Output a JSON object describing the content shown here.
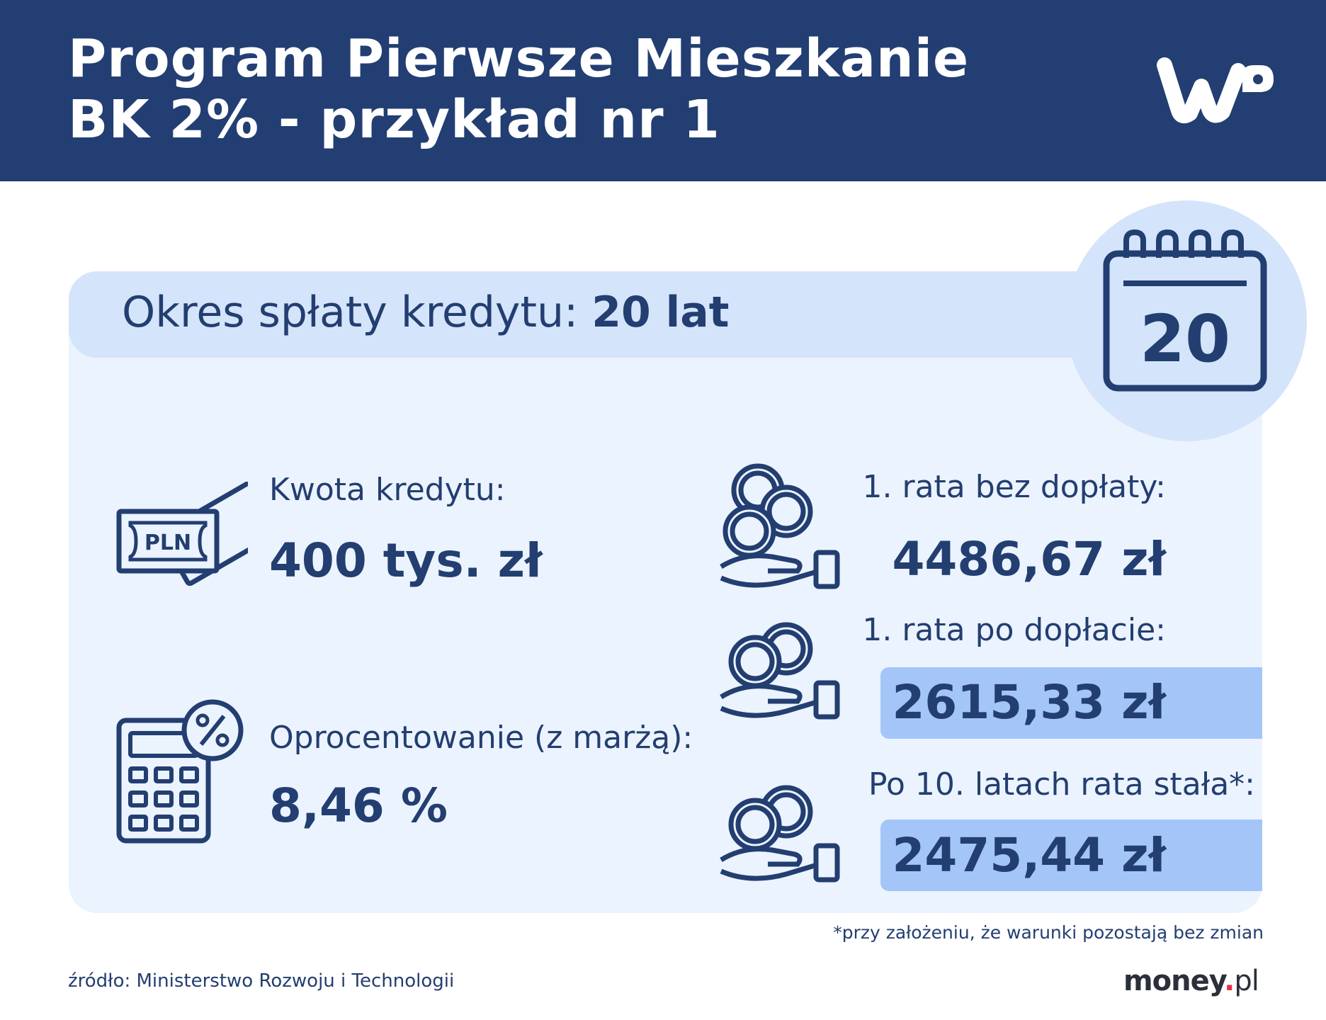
{
  "header": {
    "title_line1": "Program Pierwsze Mieszkanie",
    "title_line2": "BK 2% - przykład nr 1",
    "logo_text": "WP"
  },
  "period": {
    "label": "Okres spłaty kredytu:",
    "value": "20 lat",
    "calendar_number": "20"
  },
  "loan": {
    "label": "Kwota kredytu:",
    "value": "400 tys. zł",
    "icon_text": "PLN"
  },
  "rate": {
    "label": "Oprocentowanie (z marżą):",
    "value": "8,46 %"
  },
  "installments": [
    {
      "label": "1. rata bez dopłaty:",
      "value": "4486,67 zł",
      "highlight": false
    },
    {
      "label": "1. rata po dopłacie:",
      "value": "2615,33 zł",
      "highlight": true
    },
    {
      "label": "Po 10. latach rata stała*:",
      "value": "2475,44 zł",
      "highlight": true
    }
  ],
  "footnote": "*przy założeniu, że warunki pozostają bez zmian",
  "source": "źródło: Ministerstwo Rozwoju i Technologii",
  "brand": {
    "name": "money",
    "dot": ".",
    "tld": "pl"
  },
  "colors": {
    "header_bg": "#223e72",
    "text": "#233e70",
    "panel_bg": "#ebf3fe",
    "band_bg": "#d4e4fb",
    "highlight_bg": "#a4c5f8",
    "brand_dot": "#e0314b"
  },
  "icons": [
    "wp-logo-icon",
    "calendar-icon",
    "banknote-icon",
    "calculator-percent-icon",
    "coins-hand-icon"
  ]
}
